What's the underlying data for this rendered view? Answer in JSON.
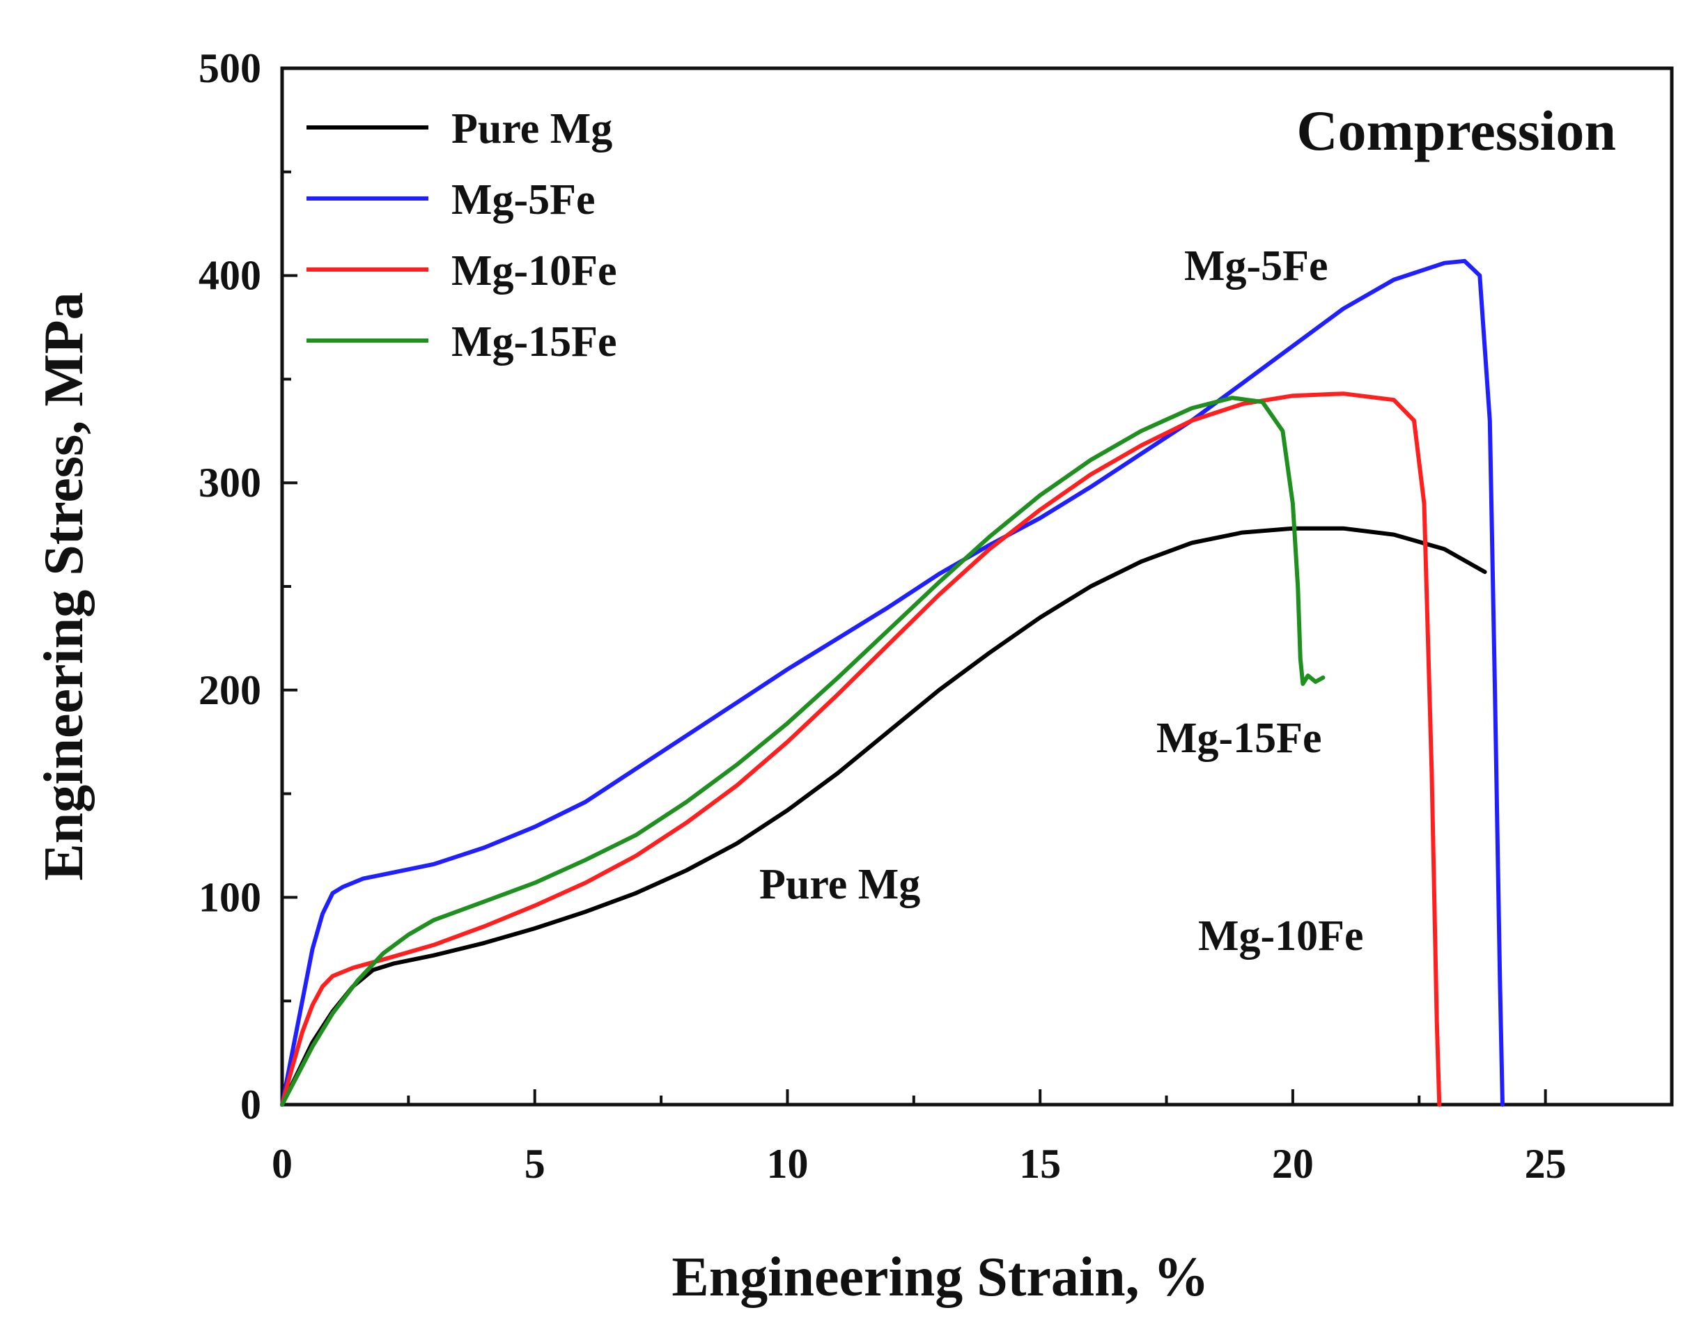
{
  "chart_data": {
    "type": "line",
    "title": "Compression",
    "xlabel": "Engineering Strain, %",
    "ylabel": "Engineering Stress, MPa",
    "xlim": [
      0,
      27.5
    ],
    "ylim": [
      0,
      500
    ],
    "xticks": [
      0,
      5,
      10,
      15,
      20,
      25
    ],
    "xtick_labels": [
      "0",
      "5",
      "10",
      "15",
      "20",
      "25"
    ],
    "yticks": [
      0,
      100,
      200,
      300,
      400,
      500
    ],
    "ytick_labels": [
      "0",
      "100",
      "200",
      "300",
      "400",
      "500"
    ],
    "grid": false,
    "legend_position": "top-left",
    "series": [
      {
        "name": "Pure Mg",
        "color": "#000000",
        "x": [
          0,
          0.3,
          0.6,
          1.0,
          1.4,
          1.8,
          2.2,
          3,
          4,
          5,
          6,
          7,
          8,
          9,
          10,
          11,
          12,
          13,
          14,
          15,
          16,
          17,
          18,
          19,
          20,
          21,
          22,
          23,
          23.8
        ],
        "y": [
          0,
          15,
          30,
          45,
          57,
          65,
          68,
          72,
          78,
          85,
          93,
          102,
          113,
          126,
          142,
          160,
          180,
          200,
          218,
          235,
          250,
          262,
          271,
          276,
          278,
          278,
          275,
          268,
          257
        ]
      },
      {
        "name": "Mg-5Fe",
        "color": "#1f1fff",
        "x": [
          0,
          0.2,
          0.4,
          0.6,
          0.8,
          1.0,
          1.2,
          1.6,
          2,
          3,
          4,
          5,
          6,
          7,
          8,
          9,
          10,
          11,
          12,
          13,
          14,
          15,
          16,
          17,
          18,
          19,
          20,
          21,
          22,
          23,
          23.4,
          23.7,
          23.9,
          24.0,
          24.1,
          24.15
        ],
        "y": [
          0,
          25,
          50,
          75,
          92,
          102,
          105,
          109,
          111,
          116,
          124,
          134,
          146,
          162,
          178,
          194,
          210,
          225,
          240,
          256,
          270,
          283,
          298,
          314,
          330,
          348,
          366,
          384,
          398,
          406,
          407,
          400,
          330,
          200,
          60,
          0
        ]
      },
      {
        "name": "Mg-10Fe",
        "color": "#ff1f1f",
        "x": [
          0,
          0.2,
          0.4,
          0.6,
          0.8,
          1.0,
          1.4,
          2,
          3,
          4,
          5,
          6,
          7,
          8,
          9,
          10,
          11,
          12,
          13,
          14,
          15,
          16,
          17,
          18,
          19,
          20,
          21,
          22,
          22.4,
          22.6,
          22.75,
          22.85,
          22.9
        ],
        "y": [
          0,
          18,
          35,
          48,
          57,
          62,
          66,
          70,
          77,
          86,
          96,
          107,
          120,
          136,
          154,
          175,
          198,
          222,
          246,
          268,
          287,
          304,
          318,
          330,
          338,
          342,
          343,
          340,
          330,
          290,
          160,
          40,
          0
        ]
      },
      {
        "name": "Mg-15Fe",
        "color": "#1f8f1f",
        "x": [
          0,
          0.3,
          0.6,
          1.0,
          1.5,
          2,
          2.5,
          3,
          4,
          5,
          6,
          7,
          8,
          9,
          10,
          11,
          12,
          13,
          14,
          15,
          16,
          17,
          18,
          18.8,
          19.4,
          19.8,
          20.0,
          20.1,
          20.15,
          20.2,
          20.3,
          20.45,
          20.6
        ],
        "y": [
          0,
          14,
          28,
          44,
          60,
          73,
          82,
          89,
          98,
          107,
          118,
          130,
          146,
          164,
          184,
          206,
          229,
          252,
          274,
          294,
          311,
          325,
          336,
          341,
          339,
          325,
          290,
          250,
          215,
          203,
          207,
          204,
          206
        ]
      }
    ],
    "annotations": [
      {
        "text": "Mg-5Fe",
        "series": "Mg-5Fe"
      },
      {
        "text": "Mg-15Fe",
        "series": "Mg-15Fe"
      },
      {
        "text": "Pure Mg",
        "series": "Pure Mg"
      },
      {
        "text": "Mg-10Fe",
        "series": "Mg-10Fe"
      }
    ]
  }
}
